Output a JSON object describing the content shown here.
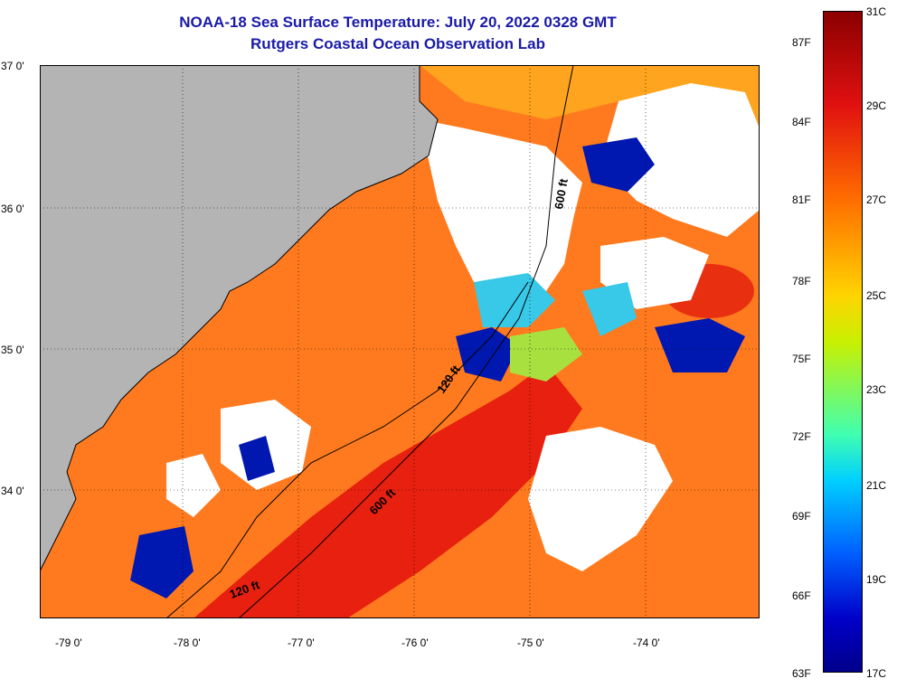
{
  "header": {
    "title": "NOAA-18 Sea Surface Temperature:  July 20, 2022 0328 GMT",
    "subtitle": "Rutgers Coastal Ocean Observation Lab"
  },
  "axes": {
    "lat_labels": [
      {
        "value": 37,
        "label": "37 0'"
      },
      {
        "value": 36,
        "label": "36 0'"
      },
      {
        "value": 35,
        "label": "35 0'"
      },
      {
        "value": 34,
        "label": "34 0'"
      }
    ],
    "lon_labels": [
      {
        "value": -79,
        "label": "-79 0'"
      },
      {
        "value": -78,
        "label": "-78 0'"
      },
      {
        "value": -77,
        "label": "-77 0'"
      },
      {
        "value": -76,
        "label": "-76 0'"
      },
      {
        "value": -75,
        "label": "-75 0'"
      },
      {
        "value": -74,
        "label": "-74 0'"
      }
    ]
  },
  "contours": {
    "label_600_north": "600 ft",
    "label_120_mid": "120 ft",
    "label_600_south": "600 ft",
    "label_120_south": "120 ft"
  },
  "colorbar": {
    "celsius": [
      "31C",
      "29C",
      "27C",
      "25C",
      "23C",
      "21C",
      "19C",
      "17C"
    ],
    "fahrenheit": [
      "87F",
      "84F",
      "81F",
      "78F",
      "75F",
      "72F",
      "69F",
      "66F",
      "63F"
    ],
    "colors": [
      "#8b0000",
      "#e01010",
      "#ff6a00",
      "#ffd400",
      "#c8f000",
      "#40ffb0",
      "#00d0ff",
      "#0060ff",
      "#0000c8",
      "#00008b"
    ]
  },
  "map_colors": {
    "land": "#b4b4b4",
    "cloud": "#ffffff",
    "warm": "#ff6a1a",
    "hot": "#e82010",
    "cold": "#0018b0",
    "cyan": "#38c8e8"
  }
}
